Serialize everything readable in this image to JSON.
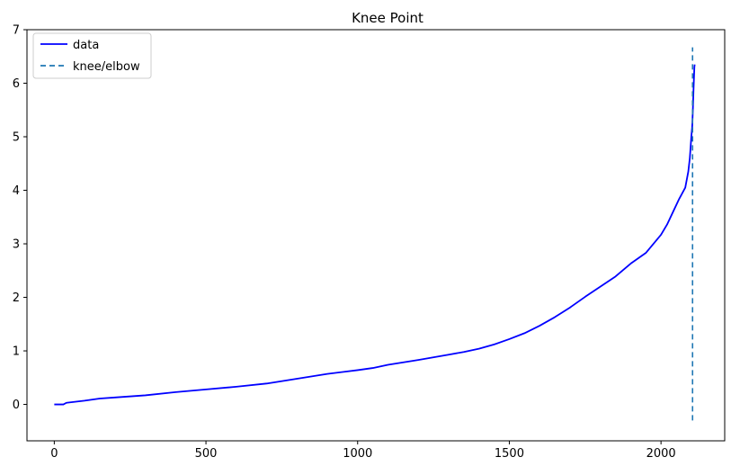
{
  "chart_data": {
    "type": "line",
    "title": "Knee Point",
    "xlabel": "",
    "ylabel": "",
    "xlim": [
      -90,
      2210
    ],
    "ylim": [
      -0.68,
      7.0
    ],
    "x_ticks": [
      0,
      500,
      1000,
      1500,
      2000
    ],
    "y_ticks": [
      0,
      1,
      2,
      3,
      4,
      5,
      6,
      7
    ],
    "grid": false,
    "legend_placement": "upper-left",
    "colors": {
      "data": "#0000ff",
      "knee": "#1f77b4"
    },
    "series": [
      {
        "name": "data",
        "style": "solid",
        "x": [
          0,
          30,
          40,
          100,
          150,
          200,
          300,
          400,
          500,
          600,
          700,
          800,
          900,
          1000,
          1050,
          1100,
          1200,
          1300,
          1350,
          1400,
          1450,
          1500,
          1550,
          1600,
          1650,
          1700,
          1750,
          1800,
          1850,
          1900,
          1950,
          2000,
          2020,
          2040,
          2060,
          2080,
          2090,
          2095,
          2100,
          2103,
          2105,
          2107,
          2110,
          2111
        ],
        "y": [
          0.0,
          0.0,
          0.03,
          0.07,
          0.11,
          0.13,
          0.17,
          0.23,
          0.28,
          0.33,
          0.39,
          0.48,
          0.57,
          0.64,
          0.68,
          0.74,
          0.83,
          0.93,
          0.98,
          1.04,
          1.12,
          1.22,
          1.33,
          1.47,
          1.63,
          1.81,
          2.01,
          2.2,
          2.39,
          2.63,
          2.83,
          3.17,
          3.36,
          3.6,
          3.84,
          4.05,
          4.35,
          4.6,
          5.0,
          5.2,
          5.5,
          5.85,
          6.3,
          6.35
        ]
      },
      {
        "name": "knee/elbow",
        "style": "dashed",
        "x": [
          2104,
          2104
        ],
        "y": [
          -0.3,
          6.67
        ]
      }
    ]
  }
}
